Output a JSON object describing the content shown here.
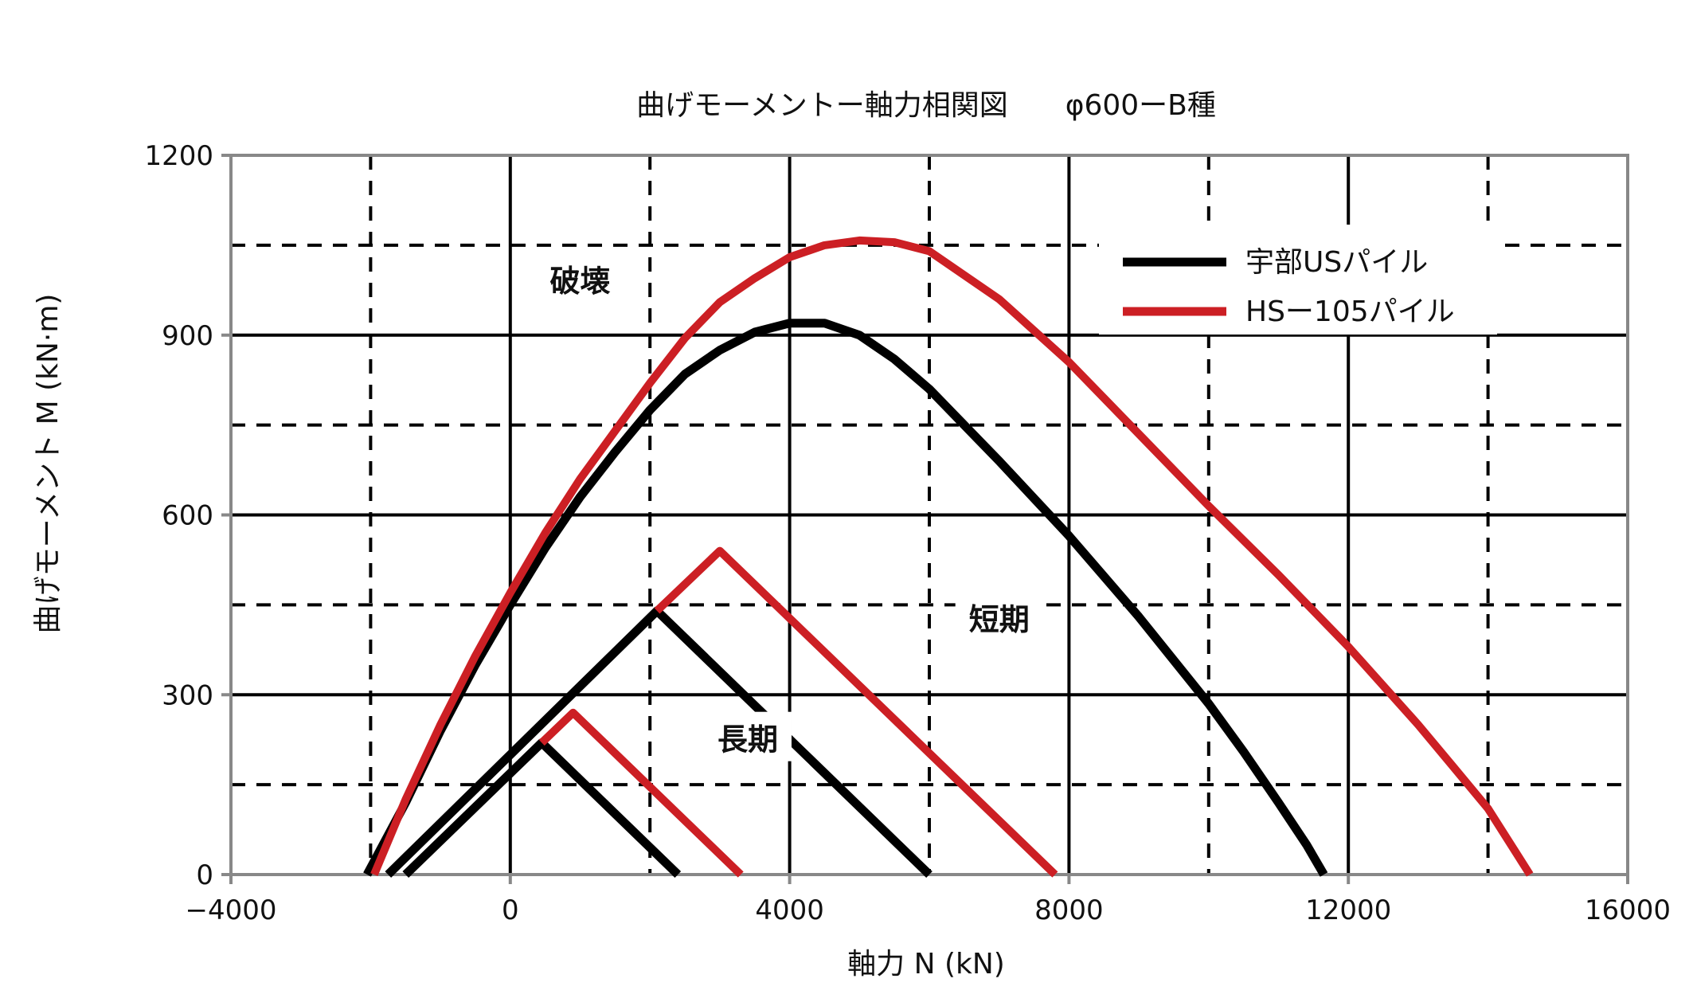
{
  "chart_data": {
    "type": "line",
    "title": "曲げモーメントー軸力相関図　　φ600ーB種",
    "xlabel": "軸力 N (kN)",
    "ylabel": "曲げモーメント M (kN·m)",
    "xlim": [
      -4000,
      16000
    ],
    "ylim": [
      0,
      1200
    ],
    "x_ticks": [
      -4000,
      0,
      4000,
      8000,
      12000,
      16000
    ],
    "x_tick_labels": [
      "−4000",
      "0",
      "4000",
      "8000",
      "12000",
      "16000"
    ],
    "y_ticks": [
      0,
      300,
      600,
      900,
      1200
    ],
    "y_tick_labels": [
      "0",
      "300",
      "600",
      "900",
      "1200"
    ],
    "grid": {
      "solid_x": [
        0,
        4000,
        8000,
        12000
      ],
      "dashed_x": [
        -2000,
        2000,
        6000,
        10000,
        14000
      ],
      "solid_y": [
        300,
        600,
        900
      ],
      "dashed_y": [
        150,
        450,
        750,
        1050
      ]
    },
    "legend_position": "top-right",
    "legend": [
      {
        "name": "宇部USパイル",
        "color": "#000000"
      },
      {
        "name": "HSー105パイル",
        "color": "#cc1f24"
      }
    ],
    "region_labels": [
      {
        "text": "破壊",
        "x": 1000,
        "y": 990
      },
      {
        "text": "短期",
        "x": 7000,
        "y": 425
      },
      {
        "text": "長期",
        "x": 3400,
        "y": 225
      }
    ],
    "series": [
      {
        "name": "宇部USパイル",
        "group": "破壊",
        "color": "#000000",
        "x": [
          -2050,
          -1500,
          -1000,
          -500,
          0,
          500,
          1000,
          1500,
          2000,
          2500,
          3000,
          3500,
          4000,
          4500,
          5000,
          5500,
          6000,
          7000,
          8000,
          9000,
          10000,
          10500,
          11000,
          11400,
          11650
        ],
        "y": [
          0,
          120,
          240,
          350,
          450,
          545,
          630,
          705,
          775,
          835,
          875,
          905,
          920,
          920,
          900,
          860,
          810,
          690,
          565,
          430,
          285,
          205,
          120,
          50,
          0
        ]
      },
      {
        "name": "HSー105パイル",
        "group": "破壊",
        "color": "#cc1f24",
        "x": [
          -1950,
          -1500,
          -1000,
          -500,
          0,
          500,
          1000,
          1500,
          2000,
          2500,
          3000,
          3500,
          4000,
          4500,
          5000,
          5500,
          6000,
          7000,
          8000,
          9000,
          10000,
          11000,
          12000,
          13000,
          13500,
          14000,
          14600
        ],
        "y": [
          0,
          125,
          250,
          365,
          470,
          570,
          660,
          740,
          820,
          895,
          955,
          995,
          1030,
          1050,
          1058,
          1055,
          1040,
          960,
          855,
          735,
          615,
          500,
          380,
          250,
          180,
          110,
          0
        ]
      },
      {
        "name": "宇部USパイル",
        "group": "短期",
        "color": "#000000",
        "x": [
          -1750,
          2100,
          6000
        ],
        "y": [
          0,
          440,
          0
        ]
      },
      {
        "name": "HSー105パイル",
        "group": "短期",
        "color": "#cc1f24",
        "x": [
          2100,
          3000,
          7800
        ],
        "y": [
          440,
          540,
          0
        ]
      },
      {
        "name": "宇部USパイル",
        "group": "長期",
        "color": "#000000",
        "x": [
          -1500,
          450,
          2400
        ],
        "y": [
          0,
          220,
          0
        ]
      },
      {
        "name": "HSー105パイル",
        "group": "長期",
        "color": "#cc1f24",
        "x": [
          450,
          900,
          3300
        ],
        "y": [
          220,
          270,
          0
        ]
      }
    ]
  }
}
